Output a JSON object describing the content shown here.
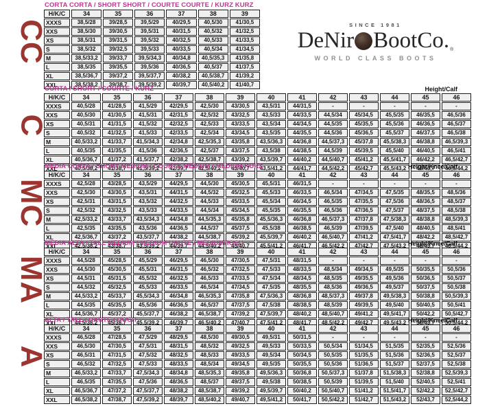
{
  "logo": {
    "since": "SINCE 1981",
    "name_prefix": "DeNir",
    "name_suffix": "BootCo.",
    "registered": "®",
    "emblem_icon": "globe-emblem",
    "tagline": "WORLD CLASS BOOTS"
  },
  "side_labels": [
    "CC",
    "C",
    "MC",
    "MA",
    "A"
  ],
  "colors": {
    "title_text": "#bd3590",
    "side_label_text": "#9c3430",
    "table_border": "#1c1c1c",
    "cell_background": "#efefef"
  },
  "tables": [
    {
      "title": "CORTA CORTA / SHORT SHORT / COURTE COURTE / KURZ KURZ",
      "height_label": "",
      "columns": [
        "H/K/C",
        "34",
        "35",
        "36",
        "37",
        "38",
        "39"
      ],
      "rows": [
        {
          "label": "XXXS",
          "cells": [
            "38,5/28",
            "39/28,5",
            "39,5/29",
            "40/29,5",
            "40,5/30",
            "41/30,5"
          ]
        },
        {
          "label": "XXS",
          "cells": [
            "38,5/30",
            "39/30,5",
            "39,5/31",
            "40/31,5",
            "40,5/32",
            "41/32,5"
          ]
        },
        {
          "label": "XS",
          "cells": [
            "38,5/31",
            "39/31,5",
            "39,5/32",
            "40/32,5",
            "40,5/33",
            "41/33,5"
          ]
        },
        {
          "label": "S",
          "cells": [
            "38,5/32",
            "39/32,5",
            "39,5/33",
            "40/33,5",
            "40,5/34",
            "41/34,5"
          ]
        },
        {
          "label": "M",
          "cells": [
            "38,5/33,2",
            "39/33,7",
            "39,5/34,3",
            "40/34,8",
            "40,5/35,3",
            "41/35,8"
          ]
        },
        {
          "label": "L",
          "cells": [
            "38,5/35",
            "39/35,5",
            "39,5/36",
            "40/36,5",
            "40,5/37",
            "41/37,5"
          ]
        },
        {
          "label": "XL",
          "cells": [
            "38,5/36,7",
            "39/37,2",
            "39,5/37,7",
            "40/38,2",
            "40,5/38,7",
            "41/39,2"
          ]
        },
        {
          "label": "XXL",
          "cells": [
            "38,5/38,2",
            "39/38,7",
            "39,5/39,2",
            "40/39,7",
            "40,5/40,2",
            "41/40,7"
          ]
        }
      ]
    },
    {
      "title": "CORTA / SHORT / COURTE / KURZ",
      "height_label": "Height/Calf",
      "columns": [
        "H/K/C",
        "34",
        "35",
        "36",
        "37",
        "38",
        "39",
        "40",
        "41",
        "42",
        "43",
        "44",
        "45",
        "46"
      ],
      "rows": [
        {
          "label": "XXXS",
          "cells": [
            "40,5/28",
            "41/28,5",
            "41,5/29",
            "42/29,5",
            "42,5/30",
            "43/30,5",
            "43,5/31",
            "44/31,5",
            "-",
            "-",
            "-",
            "-",
            "-"
          ]
        },
        {
          "label": "XXS",
          "cells": [
            "40,5/30",
            "41/30,5",
            "41,5/31",
            "42/31,5",
            "42,5/32",
            "43/32,5",
            "43,5/33",
            "44/33,5",
            "44,5/34",
            "45/34,5",
            "45,5/35",
            "46/35,5",
            "46,5/36"
          ]
        },
        {
          "label": "XS",
          "cells": [
            "40,5/31",
            "41/31,5",
            "41,5/32",
            "42/32,5",
            "42,5/33",
            "43/33,5",
            "43,5/34",
            "44/34,5",
            "44,5/35",
            "45/35,5",
            "45,5/36",
            "46/36,5",
            "46,5/37"
          ]
        },
        {
          "label": "S",
          "cells": [
            "40,5/32",
            "41/32,5",
            "41,5/33",
            "42/33,5",
            "42,5/34",
            "43/34,5",
            "43,5/35",
            "44/35,5",
            "44,5/36",
            "45/36,5",
            "45,5/37",
            "46/37,5",
            "46,5/38"
          ]
        },
        {
          "label": "M",
          "cells": [
            "40,5/33,2",
            "41/33,7",
            "41,5/34,3",
            "42/34,8",
            "42,5/35,3",
            "43/35,8",
            "43,5/36,3",
            "44/36,8",
            "44,5/37,3",
            "45/37,8",
            "45,5/38,3",
            "46/38,8",
            "46,5/39,3"
          ]
        },
        {
          "label": "L",
          "cells": [
            "40,5/35",
            "41/35,5",
            "41,5/36",
            "42/36,5",
            "42,5/37",
            "43/37,5",
            "43,5/38",
            "44/38,5",
            "44,5/39",
            "45/39,5",
            "45,5/40",
            "46/40,5",
            "46,5/41"
          ]
        },
        {
          "label": "XL",
          "cells": [
            "40,5/36,7",
            "41/37,2",
            "41,5/37,7",
            "42/38,2",
            "42,5/38,7",
            "43/39,2",
            "43,5/39,7",
            "44/40,2",
            "44,5/40,7",
            "45/41,2",
            "45,5/41,7",
            "46/42,2",
            "46,5/42,7"
          ]
        },
        {
          "label": "XXL",
          "cells": [
            "40,5/38,2",
            "41/38,7",
            "41,5/39,2",
            "42/39,7",
            "42,5/40,2",
            "43/40,7",
            "43,5/41,2",
            "44/41,7",
            "44,5/42,2",
            "45/42,7",
            "45,5/43,2",
            "46/43,7",
            "46,5/44,2"
          ]
        }
      ]
    },
    {
      "title": "MEDIA CORTA / SHORT MEDIUM / COURTE MEDIUM / MEDIUM KURZ",
      "height_label": "Height/Knee/Calf",
      "columns": [
        "H/K/C",
        "34",
        "35",
        "36",
        "37",
        "38",
        "39",
        "40",
        "41",
        "42",
        "43",
        "44",
        "45",
        "46"
      ],
      "rows": [
        {
          "label": "XXXS",
          "cells": [
            "42,5/28",
            "43/28,5",
            "43,5/29",
            "44/29,5",
            "44,5/30",
            "45/30,5",
            "45,5/31",
            "46/31,5",
            "-",
            "-",
            "-",
            "-",
            "-"
          ]
        },
        {
          "label": "XXS",
          "cells": [
            "42,5/30",
            "43/30,5",
            "43,5/31",
            "44/31,5",
            "44,5/32",
            "45/32,5",
            "45,5/33",
            "46/33,5",
            "46,5/34",
            "47/34,5",
            "47,5/35",
            "48/35,5",
            "48,5/36"
          ]
        },
        {
          "label": "XS",
          "cells": [
            "42,5/31",
            "43/31,5",
            "43,5/32",
            "44/32,5",
            "44,5/33",
            "45/33,5",
            "45,5/34",
            "46/34,5",
            "46,5/35",
            "47/35,5",
            "47,5/36",
            "48/36,5",
            "48,5/37"
          ]
        },
        {
          "label": "S",
          "cells": [
            "42,5/32",
            "43/32,5",
            "43,5/33",
            "44/33,5",
            "44,5/34",
            "45/34,5",
            "45,5/35",
            "46/35,5",
            "46,5/36",
            "47/36,5",
            "47,5/37",
            "48/37,5",
            "48,5/38"
          ]
        },
        {
          "label": "M",
          "cells": [
            "42,5/33,2",
            "43/33,7",
            "43,5/34,3",
            "44/34,8",
            "44,5/35,3",
            "45/35,8",
            "45,5/36,3",
            "46/36,8",
            "46,5/37,3",
            "47/37,8",
            "47,5/38,3",
            "48/38,8",
            "48,5/39,3"
          ]
        },
        {
          "label": "L",
          "cells": [
            "42,5/35",
            "43/35,5",
            "43,5/36",
            "44/36,5",
            "44,5/37",
            "45/37,5",
            "45,5/38",
            "46/38,5",
            "46,5/39",
            "47/39,5",
            "47,5/40",
            "48/40,5",
            "48,5/41"
          ]
        },
        {
          "label": "XL",
          "cells": [
            "42,5/36,7",
            "43/37,2",
            "43,5/37,7",
            "44/38,2",
            "44,5/38,7",
            "45/39,2",
            "45,5/39,7",
            "46/40,2",
            "46,5/40,7",
            "47/41,2",
            "47,5/41,7",
            "48/42,2",
            "48,5/42,7"
          ]
        },
        {
          "label": "XXL",
          "cells": [
            "42,5/38,2",
            "43/38,7",
            "43,5/39,2",
            "44/39,7",
            "44,5/40,2",
            "45/40,7",
            "45,5/41,2",
            "46/41,7",
            "46,5/42,2",
            "47/42,7",
            "47,5/43,2",
            "48/43,7",
            "48,5/44,2"
          ]
        }
      ]
    },
    {
      "title": "MEDIA ALTA / TALL MEDIUM / MEDIUM HAUTE / MEDIUMHOCH",
      "height_label": "Height/Knee/Calf",
      "columns": [
        "H/K/C",
        "34",
        "35",
        "36",
        "37",
        "38",
        "39",
        "40",
        "41",
        "42",
        "43",
        "44",
        "45",
        "46"
      ],
      "rows": [
        {
          "label": "XXXS",
          "cells": [
            "44,5/28",
            "45/28,5",
            "45,5/29",
            "46/29,5",
            "46,5/30",
            "47/30,5",
            "47,5/31",
            "48/31,5",
            "-",
            "-",
            "-",
            "-",
            "-"
          ]
        },
        {
          "label": "XXS",
          "cells": [
            "44,5/30",
            "45/30,5",
            "45,5/31",
            "46/31,5",
            "46,5/32",
            "47/32,5",
            "47,5/33",
            "48/33,5",
            "48,5/34",
            "49/34,5",
            "49,5/35",
            "50/35,5",
            "50,5/36"
          ]
        },
        {
          "label": "XS",
          "cells": [
            "44,5/31",
            "45/31,5",
            "45,5/32",
            "46/32,5",
            "46,5/33",
            "47/33,5",
            "47,5/34",
            "48/34,5",
            "48,5/35",
            "49/35,5",
            "49,5/36",
            "50/36,5",
            "50,5/37"
          ]
        },
        {
          "label": "S",
          "cells": [
            "44,5/32",
            "45/32,5",
            "45,5/33",
            "46/33,5",
            "46,5/34",
            "47/34,5",
            "47,5/35",
            "48/35,5",
            "48,5/36",
            "49/36,5",
            "49,5/37",
            "50/37,5",
            "50,5/38"
          ]
        },
        {
          "label": "M",
          "cells": [
            "44,5/33,2",
            "45/33,7",
            "45,5/34,3",
            "46/34,8",
            "46,5/35,3",
            "47/35,8",
            "47,5/36,3",
            "48/36,8",
            "48,5/37,3",
            "49/37,8",
            "49,5/38,3",
            "50/38,8",
            "50,5/39,3"
          ]
        },
        {
          "label": "L",
          "cells": [
            "44,5/35",
            "45/35,5",
            "45,5/36",
            "46/36,5",
            "46,5/37",
            "47/37,5",
            "47,5/38",
            "48/38,5",
            "48,5/39",
            "49/39,5",
            "49,5/40",
            "50/40,5",
            "50,5/41"
          ]
        },
        {
          "label": "XL",
          "cells": [
            "44,5/36,7",
            "45/37,2",
            "45,5/37,7",
            "46/38,2",
            "46,5/38,7",
            "47/39,2",
            "47,5/39,7",
            "48/40,2",
            "48,5/40,7",
            "49/41,2",
            "49,5/41,7",
            "50/42,2",
            "50,5/42,7"
          ]
        },
        {
          "label": "XXL",
          "cells": [
            "44,5/38,2",
            "45/38,7",
            "45,5/39,2",
            "46/39,7",
            "46,5/40,2",
            "47/40,7",
            "47,5/41,2",
            "48/41,7",
            "48,5/42,2",
            "49/42,7",
            "49,5/43,2",
            "50/43,7",
            "50,5/44,2"
          ]
        }
      ]
    },
    {
      "title": "ALTA / TALL / HAUTE / HOCH",
      "height_label": "Height/Knee/Calf",
      "columns": [
        "H/K/C",
        "34",
        "35",
        "36",
        "37",
        "38",
        "39",
        "40",
        "41",
        "42",
        "43",
        "44",
        "45",
        "46"
      ],
      "rows": [
        {
          "label": "XXXS",
          "cells": [
            "46,5/28",
            "47/28,5",
            "47,5/29",
            "48/29,5",
            "48,5/30",
            "49/30,5",
            "49,5/31",
            "50/31,5",
            "-",
            "-",
            "-",
            "-",
            "-"
          ]
        },
        {
          "label": "XXS",
          "cells": [
            "46,5/30",
            "47/30,5",
            "47,5/31",
            "48/31,5",
            "48,5/32",
            "49/32,5",
            "49,5/33",
            "50/33,5",
            "50,5/34",
            "51/34,5",
            "51,5/35",
            "52/35,5",
            "52,5/36"
          ]
        },
        {
          "label": "XS",
          "cells": [
            "46,5/31",
            "47/31,5",
            "47,5/32",
            "48/32,5",
            "48,5/33",
            "49/33,5",
            "49,5/34",
            "50/34,5",
            "50,5/35",
            "51/35,5",
            "51,5/36",
            "52/36,5",
            "52,5/37"
          ]
        },
        {
          "label": "S",
          "cells": [
            "46,5/32",
            "47/32,5",
            "47,5/33",
            "48/33,5",
            "48,5/34",
            "49/34,5",
            "49,5/35",
            "50/35,5",
            "50,5/36",
            "51/36,5",
            "51,5/37",
            "52/37,5",
            "52,5/38"
          ]
        },
        {
          "label": "M",
          "cells": [
            "46,5/33,2",
            "47/33,7",
            "47,5/34,3",
            "48/34,8",
            "48,5/35,3",
            "49/35,8",
            "49,5/36,3",
            "50/36,8",
            "50,5/37,3",
            "51/37,8",
            "51,5/38,3",
            "52/38,8",
            "52,5/39,3"
          ]
        },
        {
          "label": "L",
          "cells": [
            "46,5/35",
            "47/35,5",
            "47,5/36",
            "48/36,5",
            "48,5/37",
            "49/37,5",
            "49,5/38",
            "50/38,5",
            "50,5/39",
            "51/39,5",
            "51,5/40",
            "52/40,5",
            "52,5/41"
          ]
        },
        {
          "label": "XL",
          "cells": [
            "46,5/36,7",
            "47/37,2",
            "47,5/37,7",
            "48/38,2",
            "48,5/38,7",
            "49/39,2",
            "49,5/39,7",
            "50/40,2",
            "50,5/40,7",
            "51/41,2",
            "51,5/41,7",
            "52/42,2",
            "52,5/42,7"
          ]
        },
        {
          "label": "XXL",
          "cells": [
            "46,5/38,2",
            "47/38,7",
            "47,5/39,2",
            "48/39,7",
            "48,5/40,2",
            "49/40,7",
            "49,5/41,2",
            "50/41,7",
            "50,5/42,2",
            "51/42,7",
            "51,5/43,2",
            "52/43,7",
            "52,5/44,2"
          ]
        }
      ]
    }
  ]
}
